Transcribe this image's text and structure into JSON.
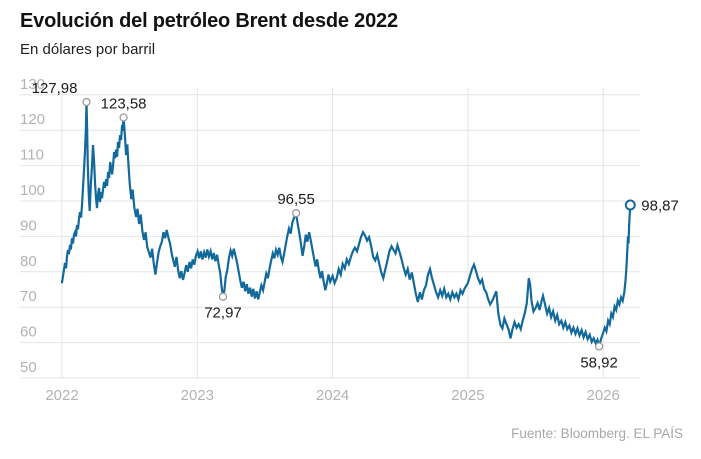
{
  "header": {
    "title": "Evolución del petróleo Brent desde 2022",
    "subtitle": "En dólares por barril"
  },
  "footer": {
    "source": "Fuente: Bloomberg. EL PAÍS"
  },
  "chart_data": {
    "type": "line",
    "title": "Evolución del petróleo Brent desde 2022",
    "ylabel": "En dólares por barril",
    "xlabel": "",
    "xlim": [
      2022,
      2026.27
    ],
    "ylim": [
      50,
      130
    ],
    "grid": true,
    "legend": "none",
    "x_ticks": [
      2022,
      2023,
      2024,
      2025,
      2026
    ],
    "y_ticks": [
      50,
      60,
      70,
      80,
      90,
      100,
      110,
      120,
      130
    ],
    "colors": {
      "line": "#12699c",
      "grid": "#e4e4e4",
      "tick_label": "#b3b3b3",
      "annotation": "#1c1c1c",
      "marker_gray": "#9a9a9a",
      "background": "#ffffff"
    },
    "annotations": [
      {
        "label": "127,98",
        "t": 2022.181,
        "v": 127.98,
        "marker": "gray",
        "placement": "left"
      },
      {
        "label": "123,58",
        "t": 2022.455,
        "v": 123.58,
        "marker": "gray",
        "placement": "above"
      },
      {
        "label": "96,55",
        "t": 2023.73,
        "v": 96.55,
        "marker": "gray",
        "placement": "above"
      },
      {
        "label": "72,97",
        "t": 2023.19,
        "v": 72.97,
        "marker": "gray",
        "placement": "below"
      },
      {
        "label": "58,92",
        "t": 2025.97,
        "v": 58.92,
        "marker": "gray",
        "placement": "below"
      },
      {
        "label": "98,87",
        "t": 2026.2,
        "v": 98.87,
        "marker": "accent",
        "placement": "right"
      }
    ],
    "points": [
      [
        2022.0,
        77.0
      ],
      [
        2022.01,
        79.5
      ],
      [
        2022.022,
        82.5
      ],
      [
        2022.03,
        81.0
      ],
      [
        2022.037,
        84.5
      ],
      [
        2022.044,
        86.2
      ],
      [
        2022.052,
        85.0
      ],
      [
        2022.059,
        87.6
      ],
      [
        2022.066,
        86.3
      ],
      [
        2022.074,
        89.5
      ],
      [
        2022.081,
        88.0
      ],
      [
        2022.089,
        90.5
      ],
      [
        2022.096,
        91.2
      ],
      [
        2022.104,
        90.0
      ],
      [
        2022.111,
        93.2
      ],
      [
        2022.118,
        92.0
      ],
      [
        2022.126,
        95.0
      ],
      [
        2022.133,
        96.9
      ],
      [
        2022.141,
        95.3
      ],
      [
        2022.148,
        98.9
      ],
      [
        2022.155,
        103.7
      ],
      [
        2022.163,
        109.3
      ],
      [
        2022.17,
        114.0
      ],
      [
        2022.177,
        120.5
      ],
      [
        2022.181,
        127.98
      ],
      [
        2022.186,
        119.5
      ],
      [
        2022.191,
        110.0
      ],
      [
        2022.198,
        101.5
      ],
      [
        2022.205,
        97.2
      ],
      [
        2022.213,
        104.5
      ],
      [
        2022.221,
        109.5
      ],
      [
        2022.229,
        115.8
      ],
      [
        2022.237,
        111.0
      ],
      [
        2022.244,
        105.4
      ],
      [
        2022.251,
        100.8
      ],
      [
        2022.259,
        98.0
      ],
      [
        2022.266,
        101.8
      ],
      [
        2022.274,
        103.7
      ],
      [
        2022.281,
        99.7
      ],
      [
        2022.289,
        102.5
      ],
      [
        2022.296,
        100.8
      ],
      [
        2022.303,
        103.2
      ],
      [
        2022.311,
        105.4
      ],
      [
        2022.318,
        103.7
      ],
      [
        2022.326,
        106.2
      ],
      [
        2022.333,
        104.3
      ],
      [
        2022.341,
        108.2
      ],
      [
        2022.348,
        106.5
      ],
      [
        2022.356,
        111.0
      ],
      [
        2022.363,
        109.3
      ],
      [
        2022.37,
        107.5
      ],
      [
        2022.378,
        110.2
      ],
      [
        2022.385,
        113.8
      ],
      [
        2022.392,
        112.1
      ],
      [
        2022.4,
        114.5
      ],
      [
        2022.407,
        112.5
      ],
      [
        2022.414,
        116.7
      ],
      [
        2022.422,
        115.0
      ],
      [
        2022.429,
        118.6
      ],
      [
        2022.437,
        117.2
      ],
      [
        2022.444,
        121.5
      ],
      [
        2022.449,
        119.8
      ],
      [
        2022.455,
        123.58
      ],
      [
        2022.465,
        118.5
      ],
      [
        2022.474,
        113.0
      ],
      [
        2022.483,
        116.0
      ],
      [
        2022.491,
        110.5
      ],
      [
        2022.5,
        105.0
      ],
      [
        2022.512,
        100.5
      ],
      [
        2022.522,
        103.2
      ],
      [
        2022.535,
        98.0
      ],
      [
        2022.548,
        95.5
      ],
      [
        2022.558,
        97.8
      ],
      [
        2022.57,
        93.5
      ],
      [
        2022.582,
        96.2
      ],
      [
        2022.594,
        91.5
      ],
      [
        2022.606,
        89.0
      ],
      [
        2022.618,
        91.2
      ],
      [
        2022.63,
        87.0
      ],
      [
        2022.642,
        85.5
      ],
      [
        2022.654,
        84.0
      ],
      [
        2022.666,
        86.5
      ],
      [
        2022.678,
        82.5
      ],
      [
        2022.69,
        79.2
      ],
      [
        2022.702,
        82.5
      ],
      [
        2022.714,
        85.5
      ],
      [
        2022.726,
        87.2
      ],
      [
        2022.738,
        88.5
      ],
      [
        2022.75,
        91.2
      ],
      [
        2022.762,
        89.5
      ],
      [
        2022.774,
        91.8
      ],
      [
        2022.786,
        89.8
      ],
      [
        2022.798,
        88.0
      ],
      [
        2022.81,
        85.3
      ],
      [
        2022.822,
        83.3
      ],
      [
        2022.834,
        81.4
      ],
      [
        2022.846,
        84.2
      ],
      [
        2022.858,
        80.5
      ],
      [
        2022.87,
        78.2
      ],
      [
        2022.882,
        80.2
      ],
      [
        2022.894,
        77.7
      ],
      [
        2022.906,
        79.7
      ],
      [
        2022.918,
        81.9
      ],
      [
        2022.93,
        80.0
      ],
      [
        2022.942,
        82.8
      ],
      [
        2022.954,
        81.0
      ],
      [
        2022.966,
        83.5
      ],
      [
        2022.978,
        82.0
      ],
      [
        2022.99,
        84.5
      ],
      [
        2023.002,
        85.8
      ],
      [
        2023.014,
        83.8
      ],
      [
        2023.026,
        85.8
      ],
      [
        2023.038,
        83.5
      ],
      [
        2023.05,
        85.5
      ],
      [
        2023.062,
        84.0
      ],
      [
        2023.074,
        86.3
      ],
      [
        2023.086,
        84.3
      ],
      [
        2023.098,
        85.8
      ],
      [
        2023.11,
        83.5
      ],
      [
        2023.122,
        85.3
      ],
      [
        2023.134,
        83.0
      ],
      [
        2023.146,
        84.8
      ],
      [
        2023.158,
        82.0
      ],
      [
        2023.17,
        79.5
      ],
      [
        2023.18,
        75.5
      ],
      [
        2023.19,
        72.97
      ],
      [
        2023.2,
        74.8
      ],
      [
        2023.21,
        78.5
      ],
      [
        2023.222,
        80.5
      ],
      [
        2023.234,
        84.0
      ],
      [
        2023.246,
        86.0
      ],
      [
        2023.258,
        84.5
      ],
      [
        2023.27,
        86.5
      ],
      [
        2023.282,
        84.5
      ],
      [
        2023.294,
        82.5
      ],
      [
        2023.306,
        80.0
      ],
      [
        2023.318,
        77.5
      ],
      [
        2023.33,
        75.5
      ],
      [
        2023.342,
        77.2
      ],
      [
        2023.354,
        74.5
      ],
      [
        2023.366,
        76.5
      ],
      [
        2023.378,
        73.8
      ],
      [
        2023.39,
        75.5
      ],
      [
        2023.402,
        73.0
      ],
      [
        2023.414,
        75.2
      ],
      [
        2023.426,
        72.5
      ],
      [
        2023.438,
        74.5
      ],
      [
        2023.45,
        72.2
      ],
      [
        2023.462,
        74.2
      ],
      [
        2023.474,
        76.2
      ],
      [
        2023.486,
        74.8
      ],
      [
        2023.498,
        77.2
      ],
      [
        2023.51,
        79.5
      ],
      [
        2023.522,
        78.2
      ],
      [
        2023.534,
        81.0
      ],
      [
        2023.546,
        83.2
      ],
      [
        2023.558,
        85.2
      ],
      [
        2023.57,
        83.8
      ],
      [
        2023.582,
        86.2
      ],
      [
        2023.594,
        84.8
      ],
      [
        2023.606,
        86.8
      ],
      [
        2023.618,
        84.2
      ],
      [
        2023.63,
        82.8
      ],
      [
        2023.642,
        85.2
      ],
      [
        2023.654,
        87.8
      ],
      [
        2023.666,
        90.2
      ],
      [
        2023.678,
        92.2
      ],
      [
        2023.69,
        90.8
      ],
      [
        2023.702,
        93.8
      ],
      [
        2023.714,
        95.2
      ],
      [
        2023.73,
        96.55
      ],
      [
        2023.742,
        93.5
      ],
      [
        2023.754,
        91.0
      ],
      [
        2023.766,
        88.0
      ],
      [
        2023.778,
        84.5
      ],
      [
        2023.79,
        87.2
      ],
      [
        2023.802,
        90.5
      ],
      [
        2023.814,
        88.5
      ],
      [
        2023.826,
        91.2
      ],
      [
        2023.838,
        89.0
      ],
      [
        2023.85,
        86.5
      ],
      [
        2023.862,
        84.0
      ],
      [
        2023.874,
        81.5
      ],
      [
        2023.886,
        83.5
      ],
      [
        2023.898,
        80.5
      ],
      [
        2023.91,
        78.2
      ],
      [
        2023.922,
        80.2
      ],
      [
        2023.934,
        77.2
      ],
      [
        2023.946,
        74.8
      ],
      [
        2023.958,
        76.8
      ],
      [
        2023.97,
        79.2
      ],
      [
        2023.982,
        77.2
      ],
      [
        2024.0,
        78.8
      ],
      [
        2024.015,
        76.8
      ],
      [
        2024.03,
        78.2
      ],
      [
        2024.045,
        80.8
      ],
      [
        2024.06,
        79.2
      ],
      [
        2024.075,
        82.2
      ],
      [
        2024.09,
        81.0
      ],
      [
        2024.105,
        83.5
      ],
      [
        2024.12,
        82.2
      ],
      [
        2024.135,
        84.2
      ],
      [
        2024.15,
        85.8
      ],
      [
        2024.165,
        86.8
      ],
      [
        2024.18,
        85.8
      ],
      [
        2024.195,
        87.8
      ],
      [
        2024.21,
        89.8
      ],
      [
        2024.225,
        91.2
      ],
      [
        2024.24,
        90.2
      ],
      [
        2024.255,
        88.8
      ],
      [
        2024.27,
        89.8
      ],
      [
        2024.285,
        87.2
      ],
      [
        2024.3,
        84.2
      ],
      [
        2024.315,
        83.2
      ],
      [
        2024.33,
        84.8
      ],
      [
        2024.345,
        82.2
      ],
      [
        2024.36,
        79.8
      ],
      [
        2024.375,
        78.2
      ],
      [
        2024.39,
        80.8
      ],
      [
        2024.405,
        83.2
      ],
      [
        2024.42,
        85.8
      ],
      [
        2024.435,
        87.2
      ],
      [
        2024.45,
        86.2
      ],
      [
        2024.465,
        85.2
      ],
      [
        2024.48,
        87.5
      ],
      [
        2024.495,
        85.5
      ],
      [
        2024.51,
        83.5
      ],
      [
        2024.525,
        81.2
      ],
      [
        2024.54,
        79.2
      ],
      [
        2024.555,
        80.8
      ],
      [
        2024.57,
        77.8
      ],
      [
        2024.585,
        79.8
      ],
      [
        2024.6,
        76.8
      ],
      [
        2024.615,
        73.8
      ],
      [
        2024.63,
        71.5
      ],
      [
        2024.645,
        74.2
      ],
      [
        2024.66,
        72.2
      ],
      [
        2024.675,
        74.8
      ],
      [
        2024.69,
        76.2
      ],
      [
        2024.705,
        79.2
      ],
      [
        2024.72,
        80.8
      ],
      [
        2024.735,
        78.2
      ],
      [
        2024.75,
        76.2
      ],
      [
        2024.765,
        74.2
      ],
      [
        2024.78,
        72.8
      ],
      [
        2024.795,
        74.8
      ],
      [
        2024.81,
        73.2
      ],
      [
        2024.825,
        75.2
      ],
      [
        2024.84,
        72.8
      ],
      [
        2024.855,
        73.8
      ],
      [
        2024.87,
        72.2
      ],
      [
        2024.885,
        74.2
      ],
      [
        2024.9,
        72.8
      ],
      [
        2024.915,
        73.8
      ],
      [
        2024.93,
        72.2
      ],
      [
        2024.945,
        74.8
      ],
      [
        2024.96,
        73.8
      ],
      [
        2024.975,
        75.2
      ],
      [
        2025.0,
        76.8
      ],
      [
        2025.015,
        78.8
      ],
      [
        2025.03,
        80.8
      ],
      [
        2025.045,
        82.0
      ],
      [
        2025.06,
        80.2
      ],
      [
        2025.075,
        78.2
      ],
      [
        2025.09,
        76.8
      ],
      [
        2025.105,
        77.8
      ],
      [
        2025.12,
        75.2
      ],
      [
        2025.135,
        74.2
      ],
      [
        2025.15,
        72.2
      ],
      [
        2025.165,
        70.8
      ],
      [
        2025.18,
        71.8
      ],
      [
        2025.195,
        73.2
      ],
      [
        2025.21,
        74.5
      ],
      [
        2025.225,
        68.2
      ],
      [
        2025.24,
        65.0
      ],
      [
        2025.255,
        64.0
      ],
      [
        2025.27,
        66.8
      ],
      [
        2025.285,
        65.2
      ],
      [
        2025.3,
        63.8
      ],
      [
        2025.315,
        61.2
      ],
      [
        2025.33,
        63.8
      ],
      [
        2025.345,
        65.8
      ],
      [
        2025.36,
        64.2
      ],
      [
        2025.375,
        65.2
      ],
      [
        2025.39,
        63.8
      ],
      [
        2025.405,
        66.2
      ],
      [
        2025.42,
        68.2
      ],
      [
        2025.435,
        71.2
      ],
      [
        2025.45,
        78.2
      ],
      [
        2025.46,
        76.5
      ],
      [
        2025.47,
        71.8
      ],
      [
        2025.485,
        68.8
      ],
      [
        2025.5,
        69.8
      ],
      [
        2025.515,
        71.2
      ],
      [
        2025.53,
        69.2
      ],
      [
        2025.545,
        71.8
      ],
      [
        2025.555,
        73.2
      ],
      [
        2025.57,
        70.8
      ],
      [
        2025.585,
        68.2
      ],
      [
        2025.6,
        69.8
      ],
      [
        2025.615,
        67.2
      ],
      [
        2025.63,
        68.8
      ],
      [
        2025.645,
        66.2
      ],
      [
        2025.66,
        67.8
      ],
      [
        2025.675,
        65.2
      ],
      [
        2025.69,
        66.2
      ],
      [
        2025.705,
        64.2
      ],
      [
        2025.72,
        65.8
      ],
      [
        2025.735,
        63.8
      ],
      [
        2025.75,
        64.8
      ],
      [
        2025.765,
        62.8
      ],
      [
        2025.78,
        64.2
      ],
      [
        2025.795,
        62.5
      ],
      [
        2025.81,
        64.0
      ],
      [
        2025.825,
        62.0
      ],
      [
        2025.84,
        63.5
      ],
      [
        2025.855,
        61.5
      ],
      [
        2025.87,
        63.0
      ],
      [
        2025.885,
        61.0
      ],
      [
        2025.9,
        62.2
      ],
      [
        2025.915,
        60.2
      ],
      [
        2025.93,
        61.2
      ],
      [
        2025.945,
        59.8
      ],
      [
        2025.958,
        60.8
      ],
      [
        2025.97,
        58.92
      ],
      [
        2025.985,
        61.2
      ],
      [
        2026.0,
        62.8
      ],
      [
        2026.012,
        64.2
      ],
      [
        2026.024,
        63.2
      ],
      [
        2026.036,
        66.2
      ],
      [
        2026.048,
        65.2
      ],
      [
        2026.06,
        68.2
      ],
      [
        2026.072,
        67.2
      ],
      [
        2026.084,
        70.2
      ],
      [
        2026.096,
        69.2
      ],
      [
        2026.108,
        71.8
      ],
      [
        2026.12,
        70.8
      ],
      [
        2026.132,
        72.8
      ],
      [
        2026.144,
        71.8
      ],
      [
        2026.156,
        74.2
      ],
      [
        2026.165,
        77.5
      ],
      [
        2026.172,
        81.5
      ],
      [
        2026.178,
        86.0
      ],
      [
        2026.183,
        90.0
      ],
      [
        2026.187,
        88.0
      ],
      [
        2026.192,
        93.5
      ],
      [
        2026.196,
        96.0
      ],
      [
        2026.2,
        98.87
      ]
    ]
  }
}
